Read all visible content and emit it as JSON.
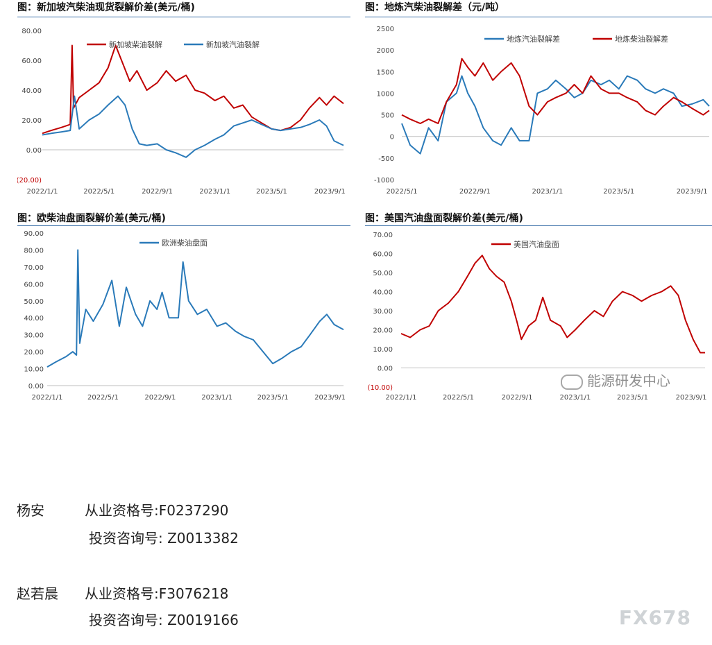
{
  "chart_data": [
    {
      "type": "line",
      "title": "图：新加坡汽柴油现货裂解价差(美元/桶)",
      "y_tick_labels": [
        "80.00",
        "60.00",
        "40.00",
        "20.00",
        "0.00",
        "(20.00)"
      ],
      "x_tick_labels": [
        "2022/1/1",
        "2022/5/1",
        "2022/9/1",
        "2023/1/1",
        "2023/5/1",
        "2023/9/1"
      ],
      "ylim": [
        -20,
        80
      ],
      "x_range": [
        "2022-01-01",
        "2023-09-30"
      ],
      "legend_position": "top",
      "series": [
        {
          "name": "新加坡柴油裂解",
          "color": "#c00000",
          "points": [
            [
              "2022-01-01",
              11
            ],
            [
              "2022-01-20",
              13
            ],
            [
              "2022-02-10",
              15
            ],
            [
              "2022-03-01",
              17
            ],
            [
              "2022-03-05",
              70
            ],
            [
              "2022-03-08",
              28
            ],
            [
              "2022-03-20",
              35
            ],
            [
              "2022-04-10",
              40
            ],
            [
              "2022-05-01",
              45
            ],
            [
              "2022-05-20",
              55
            ],
            [
              "2022-06-05",
              70
            ],
            [
              "2022-06-20",
              58
            ],
            [
              "2022-07-05",
              46
            ],
            [
              "2022-07-20",
              53
            ],
            [
              "2022-08-10",
              40
            ],
            [
              "2022-09-01",
              45
            ],
            [
              "2022-09-20",
              53
            ],
            [
              "2022-10-10",
              46
            ],
            [
              "2022-11-01",
              50
            ],
            [
              "2022-11-20",
              40
            ],
            [
              "2022-12-10",
              38
            ],
            [
              "2023-01-01",
              33
            ],
            [
              "2023-01-20",
              36
            ],
            [
              "2023-02-10",
              28
            ],
            [
              "2023-03-01",
              30
            ],
            [
              "2023-03-20",
              22
            ],
            [
              "2023-04-10",
              18
            ],
            [
              "2023-05-01",
              14
            ],
            [
              "2023-05-20",
              13
            ],
            [
              "2023-06-10",
              15
            ],
            [
              "2023-07-01",
              20
            ],
            [
              "2023-07-20",
              28
            ],
            [
              "2023-08-10",
              35
            ],
            [
              "2023-08-25",
              30
            ],
            [
              "2023-09-10",
              36
            ],
            [
              "2023-09-30",
              31
            ]
          ]
        },
        {
          "name": "新加坡汽油裂解",
          "color": "#2a7ab9",
          "points": [
            [
              "2022-01-01",
              10
            ],
            [
              "2022-01-20",
              11
            ],
            [
              "2022-02-10",
              12
            ],
            [
              "2022-03-01",
              13
            ],
            [
              "2022-03-10",
              36
            ],
            [
              "2022-03-20",
              14
            ],
            [
              "2022-04-10",
              20
            ],
            [
              "2022-05-01",
              24
            ],
            [
              "2022-05-20",
              30
            ],
            [
              "2022-06-10",
              36
            ],
            [
              "2022-06-25",
              30
            ],
            [
              "2022-07-10",
              14
            ],
            [
              "2022-07-25",
              4
            ],
            [
              "2022-08-10",
              3
            ],
            [
              "2022-09-01",
              4
            ],
            [
              "2022-09-20",
              0
            ],
            [
              "2022-10-10",
              -2
            ],
            [
              "2022-11-01",
              -5
            ],
            [
              "2022-11-20",
              0
            ],
            [
              "2022-12-10",
              3
            ],
            [
              "2023-01-01",
              7
            ],
            [
              "2023-01-20",
              10
            ],
            [
              "2023-02-10",
              16
            ],
            [
              "2023-03-01",
              18
            ],
            [
              "2023-03-20",
              20
            ],
            [
              "2023-04-10",
              17
            ],
            [
              "2023-05-01",
              14
            ],
            [
              "2023-05-20",
              13
            ],
            [
              "2023-06-10",
              14
            ],
            [
              "2023-07-01",
              15
            ],
            [
              "2023-07-20",
              17
            ],
            [
              "2023-08-10",
              20
            ],
            [
              "2023-08-25",
              16
            ],
            [
              "2023-09-10",
              6
            ],
            [
              "2023-09-30",
              3
            ]
          ]
        }
      ]
    },
    {
      "type": "line",
      "title": "图：地炼汽柴油裂解差（元/吨）",
      "y_tick_labels": [
        "2500",
        "2000",
        "1500",
        "1000",
        "500",
        "0",
        "-500",
        "-1000"
      ],
      "x_tick_labels": [
        "2022/5/1",
        "2022/9/1",
        "2023/1/1",
        "2023/5/1",
        "2023/9/1"
      ],
      "ylim": [
        -1000,
        2500
      ],
      "x_range": [
        "2022-05-01",
        "2023-09-30"
      ],
      "legend_position": "top-right",
      "series": [
        {
          "name": "地炼汽油裂解差",
          "color": "#2a7ab9",
          "points": [
            [
              "2022-05-01",
              300
            ],
            [
              "2022-05-15",
              -200
            ],
            [
              "2022-06-01",
              -400
            ],
            [
              "2022-06-15",
              200
            ],
            [
              "2022-07-01",
              -100
            ],
            [
              "2022-07-15",
              800
            ],
            [
              "2022-08-01",
              1000
            ],
            [
              "2022-08-10",
              1400
            ],
            [
              "2022-08-20",
              1000
            ],
            [
              "2022-09-01",
              700
            ],
            [
              "2022-09-15",
              200
            ],
            [
              "2022-10-01",
              -100
            ],
            [
              "2022-10-15",
              -200
            ],
            [
              "2022-11-01",
              200
            ],
            [
              "2022-11-15",
              -100
            ],
            [
              "2022-12-01",
              -100
            ],
            [
              "2022-12-15",
              1000
            ],
            [
              "2023-01-01",
              1100
            ],
            [
              "2023-01-15",
              1300
            ],
            [
              "2023-02-01",
              1100
            ],
            [
              "2023-02-15",
              900
            ],
            [
              "2023-03-01",
              1000
            ],
            [
              "2023-03-15",
              1300
            ],
            [
              "2023-04-01",
              1200
            ],
            [
              "2023-04-15",
              1300
            ],
            [
              "2023-05-01",
              1100
            ],
            [
              "2023-05-15",
              1400
            ],
            [
              "2023-06-01",
              1300
            ],
            [
              "2023-06-15",
              1100
            ],
            [
              "2023-07-01",
              1000
            ],
            [
              "2023-07-15",
              1100
            ],
            [
              "2023-08-01",
              1000
            ],
            [
              "2023-08-15",
              700
            ],
            [
              "2023-09-01",
              750
            ],
            [
              "2023-09-20",
              850
            ],
            [
              "2023-09-30",
              700
            ]
          ]
        },
        {
          "name": "地炼柴油裂解差",
          "color": "#c00000",
          "points": [
            [
              "2022-05-01",
              500
            ],
            [
              "2022-05-15",
              400
            ],
            [
              "2022-06-01",
              300
            ],
            [
              "2022-06-15",
              400
            ],
            [
              "2022-07-01",
              300
            ],
            [
              "2022-07-15",
              800
            ],
            [
              "2022-08-01",
              1200
            ],
            [
              "2022-08-10",
              1800
            ],
            [
              "2022-08-20",
              1600
            ],
            [
              "2022-09-01",
              1400
            ],
            [
              "2022-09-15",
              1700
            ],
            [
              "2022-10-01",
              1300
            ],
            [
              "2022-10-15",
              1500
            ],
            [
              "2022-11-01",
              1700
            ],
            [
              "2022-11-15",
              1400
            ],
            [
              "2022-12-01",
              700
            ],
            [
              "2022-12-15",
              500
            ],
            [
              "2023-01-01",
              800
            ],
            [
              "2023-01-15",
              900
            ],
            [
              "2023-02-01",
              1000
            ],
            [
              "2023-02-15",
              1200
            ],
            [
              "2023-03-01",
              1000
            ],
            [
              "2023-03-15",
              1400
            ],
            [
              "2023-04-01",
              1100
            ],
            [
              "2023-04-15",
              1000
            ],
            [
              "2023-05-01",
              1000
            ],
            [
              "2023-05-15",
              900
            ],
            [
              "2023-06-01",
              800
            ],
            [
              "2023-06-15",
              600
            ],
            [
              "2023-07-01",
              500
            ],
            [
              "2023-07-15",
              700
            ],
            [
              "2023-08-01",
              900
            ],
            [
              "2023-08-15",
              800
            ],
            [
              "2023-09-01",
              650
            ],
            [
              "2023-09-20",
              500
            ],
            [
              "2023-09-30",
              600
            ]
          ]
        }
      ]
    },
    {
      "type": "line",
      "title": "图：欧柴油盘面裂解价差(美元/桶)",
      "y_tick_labels": [
        "90.00",
        "80.00",
        "70.00",
        "60.00",
        "50.00",
        "40.00",
        "30.00",
        "20.00",
        "10.00",
        "0.00"
      ],
      "x_tick_labels": [
        "2022/1/1",
        "2022/5/1",
        "2022/9/1",
        "2023/1/1",
        "2023/5/1",
        "2023/9/1"
      ],
      "ylim": [
        0,
        90
      ],
      "x_range": [
        "2022-01-01",
        "2023-09-30"
      ],
      "legend_position": "top",
      "series": [
        {
          "name": "欧洲柴油盘面",
          "color": "#2a7ab9",
          "points": [
            [
              "2022-01-01",
              11
            ],
            [
              "2022-01-20",
              14
            ],
            [
              "2022-02-10",
              17
            ],
            [
              "2022-02-25",
              20
            ],
            [
              "2022-03-05",
              18
            ],
            [
              "2022-03-08",
              80
            ],
            [
              "2022-03-12",
              25
            ],
            [
              "2022-03-25",
              45
            ],
            [
              "2022-04-10",
              38
            ],
            [
              "2022-05-01",
              48
            ],
            [
              "2022-05-20",
              62
            ],
            [
              "2022-06-05",
              35
            ],
            [
              "2022-06-20",
              58
            ],
            [
              "2022-07-10",
              42
            ],
            [
              "2022-07-25",
              35
            ],
            [
              "2022-08-10",
              50
            ],
            [
              "2022-08-25",
              45
            ],
            [
              "2022-09-05",
              55
            ],
            [
              "2022-09-20",
              40
            ],
            [
              "2022-10-10",
              40
            ],
            [
              "2022-10-20",
              73
            ],
            [
              "2022-11-01",
              50
            ],
            [
              "2022-11-20",
              42
            ],
            [
              "2022-12-10",
              45
            ],
            [
              "2023-01-01",
              35
            ],
            [
              "2023-01-20",
              37
            ],
            [
              "2023-02-10",
              32
            ],
            [
              "2023-03-01",
              29
            ],
            [
              "2023-03-20",
              27
            ],
            [
              "2023-04-10",
              20
            ],
            [
              "2023-05-01",
              13
            ],
            [
              "2023-05-20",
              16
            ],
            [
              "2023-06-10",
              20
            ],
            [
              "2023-07-01",
              23
            ],
            [
              "2023-07-20",
              30
            ],
            [
              "2023-08-10",
              38
            ],
            [
              "2023-08-25",
              42
            ],
            [
              "2023-09-10",
              36
            ],
            [
              "2023-09-30",
              33
            ]
          ]
        }
      ]
    },
    {
      "type": "line",
      "title": "图：美国汽油盘面裂解价差(美元/桶)",
      "y_tick_labels": [
        "70.00",
        "60.00",
        "50.00",
        "40.00",
        "30.00",
        "20.00",
        "10.00",
        "0.00",
        "(10.00)"
      ],
      "x_tick_labels": [
        "2022/1/1",
        "2022/5/1",
        "2022/9/1",
        "2023/1/1",
        "2023/5/1",
        "2023/9/1"
      ],
      "ylim": [
        -10,
        70
      ],
      "x_range": [
        "2022-01-01",
        "2023-09-30"
      ],
      "legend_position": "top",
      "series": [
        {
          "name": "美国汽油盘面",
          "color": "#c00000",
          "points": [
            [
              "2022-01-01",
              18
            ],
            [
              "2022-01-20",
              16
            ],
            [
              "2022-02-10",
              20
            ],
            [
              "2022-03-01",
              22
            ],
            [
              "2022-03-20",
              30
            ],
            [
              "2022-04-10",
              34
            ],
            [
              "2022-05-01",
              40
            ],
            [
              "2022-05-20",
              48
            ],
            [
              "2022-06-05",
              55
            ],
            [
              "2022-06-20",
              59
            ],
            [
              "2022-07-05",
              52
            ],
            [
              "2022-07-20",
              48
            ],
            [
              "2022-08-05",
              45
            ],
            [
              "2022-08-20",
              35
            ],
            [
              "2022-09-01",
              24
            ],
            [
              "2022-09-10",
              15
            ],
            [
              "2022-09-25",
              22
            ],
            [
              "2022-10-10",
              25
            ],
            [
              "2022-10-25",
              37
            ],
            [
              "2022-11-10",
              25
            ],
            [
              "2022-12-01",
              22
            ],
            [
              "2022-12-15",
              16
            ],
            [
              "2023-01-01",
              20
            ],
            [
              "2023-01-20",
              25
            ],
            [
              "2023-02-10",
              30
            ],
            [
              "2023-03-01",
              27
            ],
            [
              "2023-03-20",
              35
            ],
            [
              "2023-04-10",
              40
            ],
            [
              "2023-05-01",
              38
            ],
            [
              "2023-05-20",
              35
            ],
            [
              "2023-06-10",
              38
            ],
            [
              "2023-07-01",
              40
            ],
            [
              "2023-07-20",
              43
            ],
            [
              "2023-08-05",
              38
            ],
            [
              "2023-08-20",
              25
            ],
            [
              "2023-09-05",
              15
            ],
            [
              "2023-09-20",
              8
            ],
            [
              "2023-09-30",
              8
            ]
          ]
        }
      ]
    }
  ],
  "watermark": "能源研发中心",
  "contacts": [
    {
      "name": "杨安",
      "line1": "从业资格号:F0237290",
      "line2": "投资咨询号: Z0013382"
    },
    {
      "name": "赵若晨",
      "line1": "从业资格号:F3076218",
      "line2": "投资咨询号: Z0019166"
    }
  ],
  "brand": "FX678"
}
